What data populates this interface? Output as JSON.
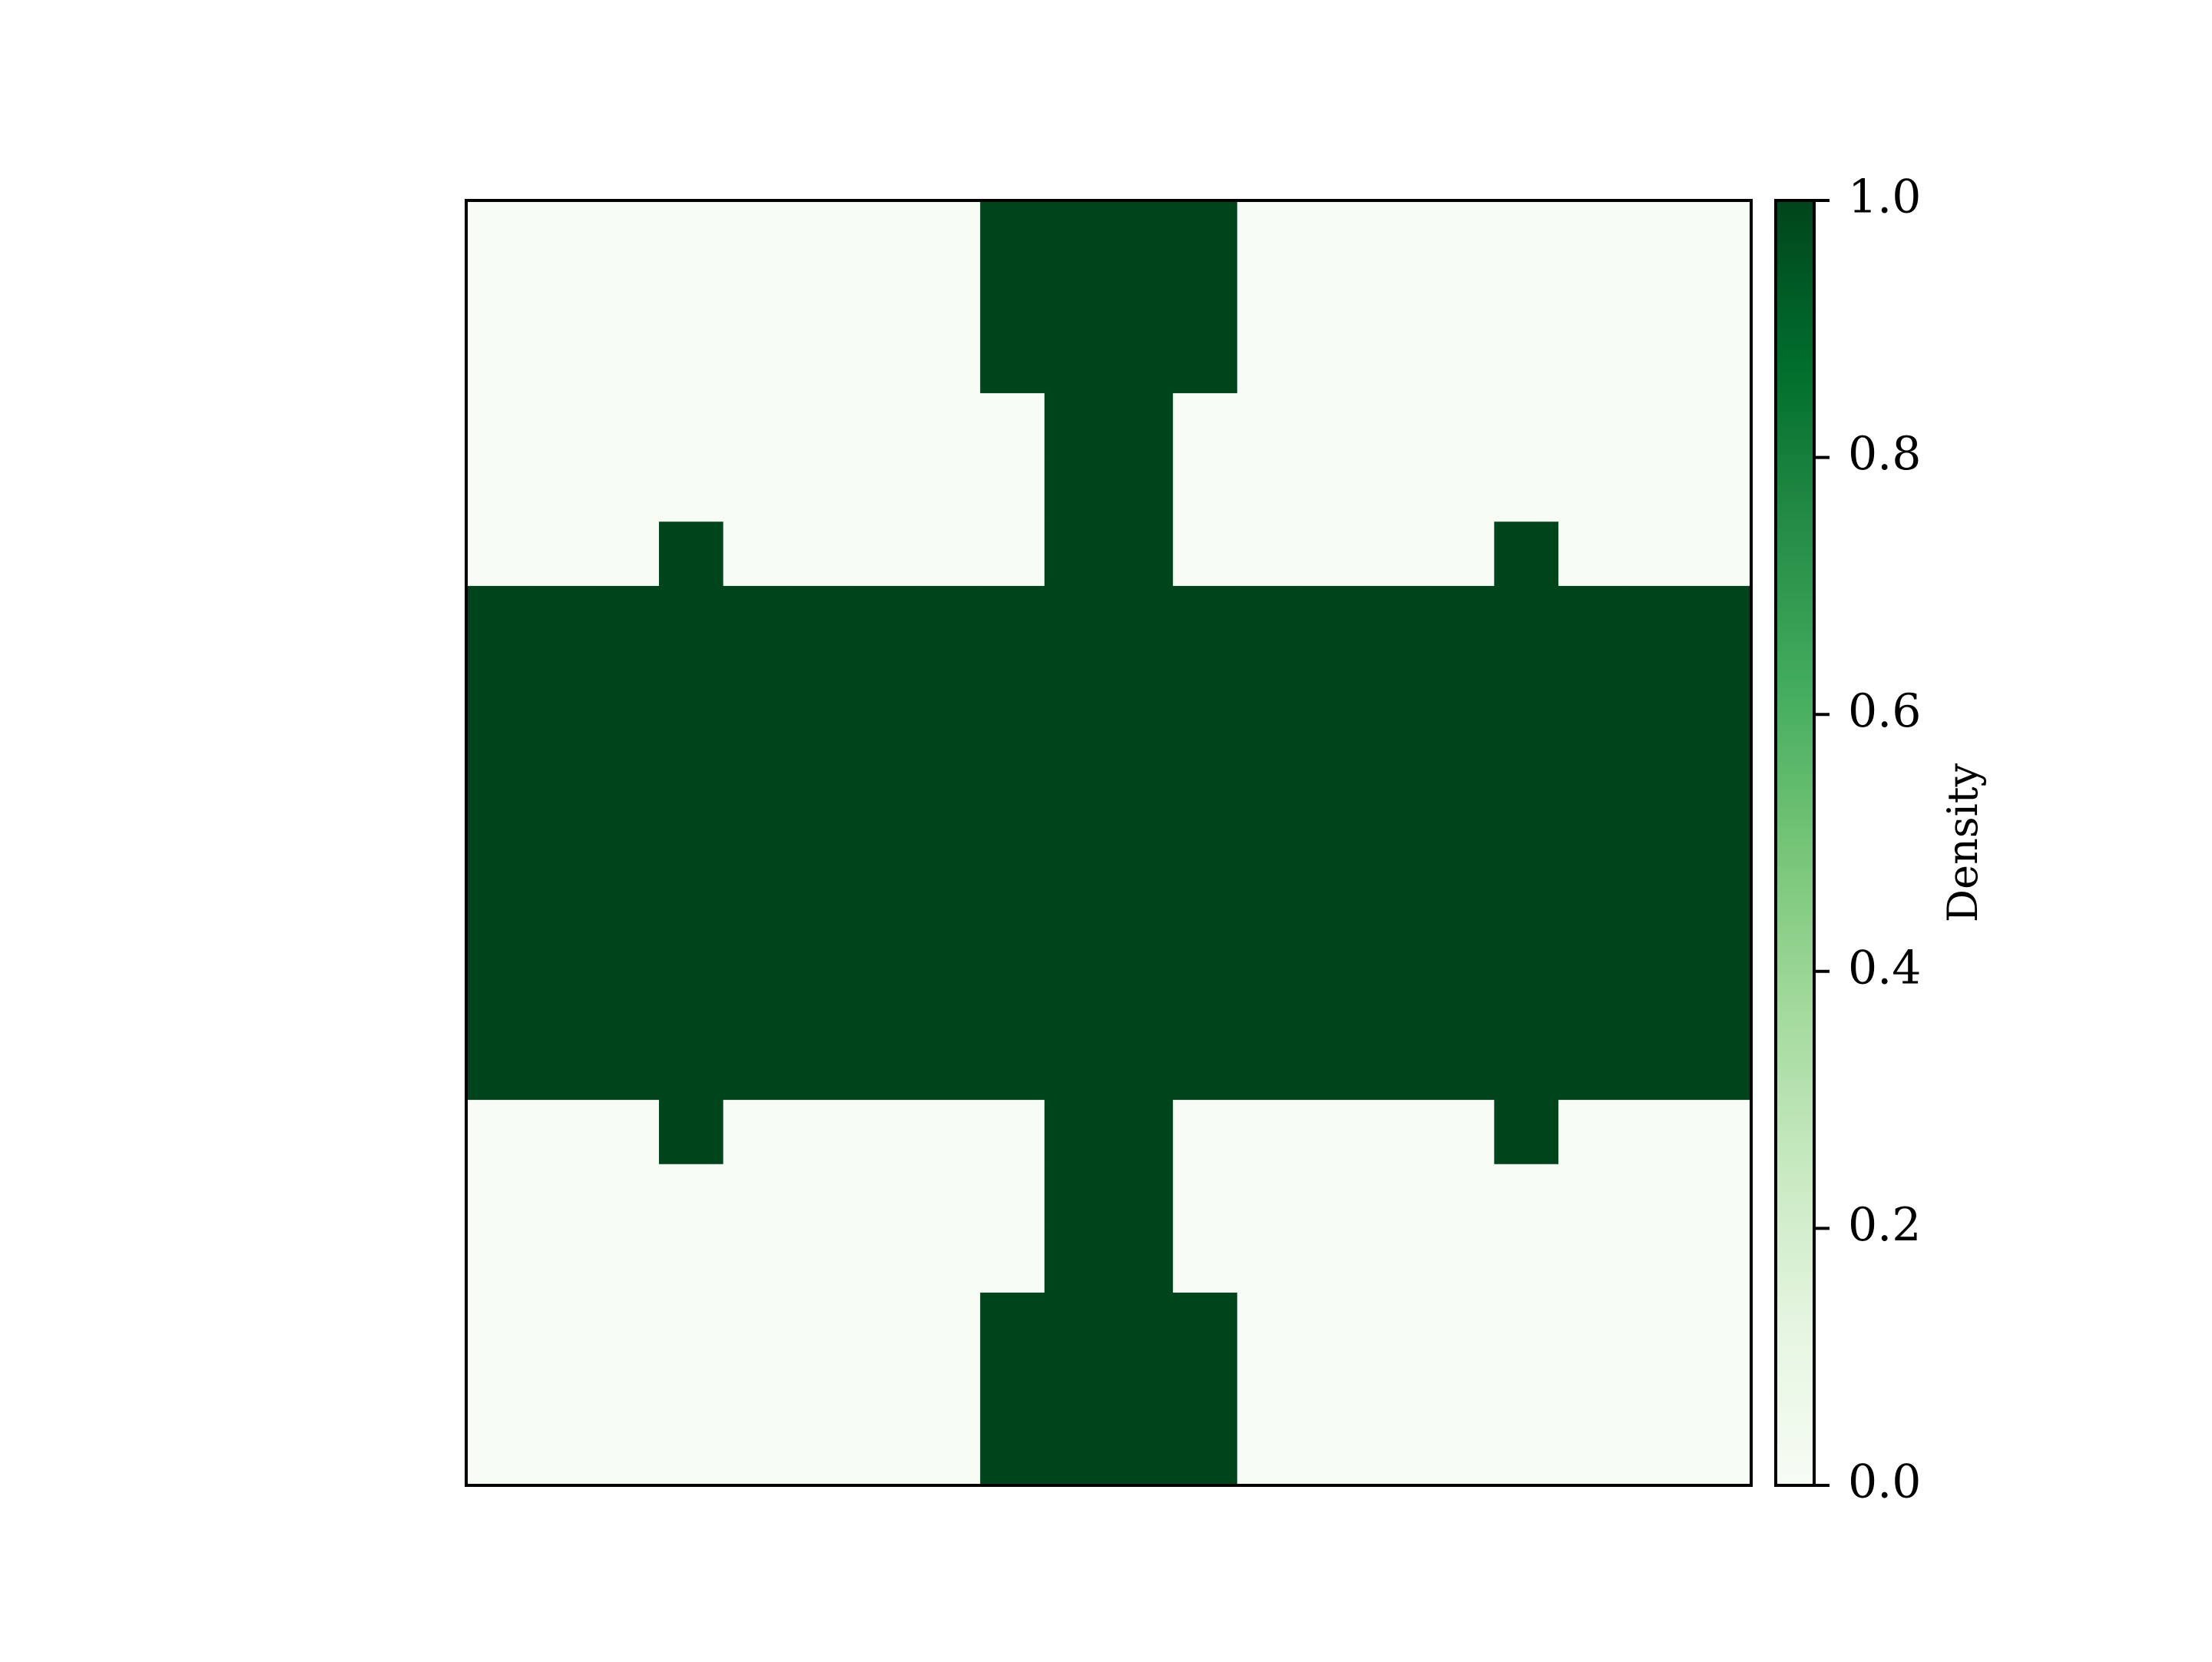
{
  "chart_data": {
    "type": "heatmap",
    "title": "",
    "xlabel": "",
    "ylabel": "",
    "colormap": "Greens",
    "colors": {
      "low": "#f7fcf5",
      "high": "#00441b",
      "stops": [
        "#f7fcf5",
        "#e5f5e0",
        "#c7e9c0",
        "#a1d99b",
        "#74c476",
        "#41ab5d",
        "#238b45",
        "#006d2c",
        "#00441b"
      ]
    },
    "x_ticks": "none",
    "y_ticks": "none",
    "grid": false,
    "values": [
      [
        0,
        0,
        0,
        0,
        0,
        0,
        0,
        0,
        1,
        1,
        1,
        1,
        0,
        0,
        0,
        0,
        0,
        0,
        0,
        0
      ],
      [
        0,
        0,
        0,
        0,
        0,
        0,
        0,
        0,
        1,
        1,
        1,
        1,
        0,
        0,
        0,
        0,
        0,
        0,
        0,
        0
      ],
      [
        0,
        0,
        0,
        0,
        0,
        0,
        0,
        0,
        1,
        1,
        1,
        1,
        0,
        0,
        0,
        0,
        0,
        0,
        0,
        0
      ],
      [
        0,
        0,
        0,
        0,
        0,
        0,
        0,
        0,
        0,
        1,
        1,
        0,
        0,
        0,
        0,
        0,
        0,
        0,
        0,
        0
      ],
      [
        0,
        0,
        0,
        0,
        0,
        0,
        0,
        0,
        0,
        1,
        1,
        0,
        0,
        0,
        0,
        0,
        0,
        0,
        0,
        0
      ],
      [
        0,
        0,
        0,
        1,
        0,
        0,
        0,
        0,
        0,
        1,
        1,
        0,
        0,
        0,
        0,
        0,
        1,
        0,
        0,
        0
      ],
      [
        1,
        1,
        1,
        1,
        1,
        1,
        1,
        1,
        1,
        1,
        1,
        1,
        1,
        1,
        1,
        1,
        1,
        1,
        1,
        1
      ],
      [
        1,
        1,
        1,
        1,
        1,
        1,
        1,
        1,
        1,
        1,
        1,
        1,
        1,
        1,
        1,
        1,
        1,
        1,
        1,
        1
      ],
      [
        1,
        1,
        1,
        1,
        1,
        1,
        1,
        1,
        1,
        1,
        1,
        1,
        1,
        1,
        1,
        1,
        1,
        1,
        1,
        1
      ],
      [
        1,
        1,
        1,
        1,
        1,
        1,
        1,
        1,
        1,
        1,
        1,
        1,
        1,
        1,
        1,
        1,
        1,
        1,
        1,
        1
      ],
      [
        1,
        1,
        1,
        1,
        1,
        1,
        1,
        1,
        1,
        1,
        1,
        1,
        1,
        1,
        1,
        1,
        1,
        1,
        1,
        1
      ],
      [
        1,
        1,
        1,
        1,
        1,
        1,
        1,
        1,
        1,
        1,
        1,
        1,
        1,
        1,
        1,
        1,
        1,
        1,
        1,
        1
      ],
      [
        1,
        1,
        1,
        1,
        1,
        1,
        1,
        1,
        1,
        1,
        1,
        1,
        1,
        1,
        1,
        1,
        1,
        1,
        1,
        1
      ],
      [
        1,
        1,
        1,
        1,
        1,
        1,
        1,
        1,
        1,
        1,
        1,
        1,
        1,
        1,
        1,
        1,
        1,
        1,
        1,
        1
      ],
      [
        0,
        0,
        0,
        1,
        0,
        0,
        0,
        0,
        0,
        1,
        1,
        0,
        0,
        0,
        0,
        0,
        1,
        0,
        0,
        0
      ],
      [
        0,
        0,
        0,
        0,
        0,
        0,
        0,
        0,
        0,
        1,
        1,
        0,
        0,
        0,
        0,
        0,
        0,
        0,
        0,
        0
      ],
      [
        0,
        0,
        0,
        0,
        0,
        0,
        0,
        0,
        0,
        1,
        1,
        0,
        0,
        0,
        0,
        0,
        0,
        0,
        0,
        0
      ],
      [
        0,
        0,
        0,
        0,
        0,
        0,
        0,
        0,
        1,
        1,
        1,
        1,
        0,
        0,
        0,
        0,
        0,
        0,
        0,
        0
      ],
      [
        0,
        0,
        0,
        0,
        0,
        0,
        0,
        0,
        1,
        1,
        1,
        1,
        0,
        0,
        0,
        0,
        0,
        0,
        0,
        0
      ],
      [
        0,
        0,
        0,
        0,
        0,
        0,
        0,
        0,
        1,
        1,
        1,
        1,
        0,
        0,
        0,
        0,
        0,
        0,
        0,
        0
      ]
    ],
    "colorbar": {
      "label": "Density",
      "range": [
        0,
        1
      ],
      "ticks": [
        0.0,
        0.2,
        0.4,
        0.6,
        0.8,
        1.0
      ],
      "tick_labels": [
        "0.0",
        "0.2",
        "0.4",
        "0.6",
        "0.8",
        "1.0"
      ]
    }
  }
}
